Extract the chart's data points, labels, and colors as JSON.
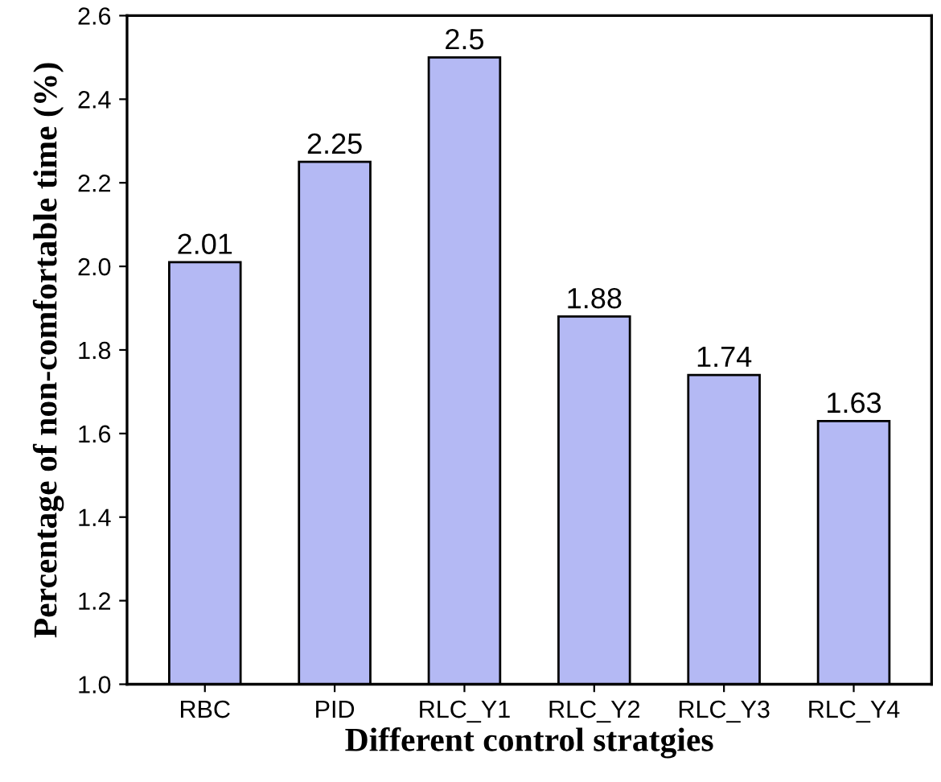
{
  "chart_data": {
    "type": "bar",
    "xlabel": "Different control stratgies",
    "ylabel": "Percentage of non-comfortable time (%)",
    "categories": [
      "RBC",
      "PID",
      "RLC_Y1",
      "RLC_Y2",
      "RLC_Y3",
      "RLC_Y4"
    ],
    "values": [
      2.01,
      2.25,
      2.5,
      1.88,
      1.74,
      1.63
    ],
    "color": "#b4b9f4",
    "ylim": [
      1.0,
      2.6
    ],
    "yticks": [
      {
        "value": 1.0,
        "label": "1.0"
      },
      {
        "value": 1.2,
        "label": "1.2"
      },
      {
        "value": 1.4,
        "label": "1.4"
      },
      {
        "value": 1.6,
        "label": "1.6"
      },
      {
        "value": 1.8,
        "label": "1.8"
      },
      {
        "value": 2.0,
        "label": "2.0"
      },
      {
        "value": 2.2,
        "label": "2.2"
      },
      {
        "value": 2.4,
        "label": "2.4"
      },
      {
        "value": 2.6,
        "label": "2.6"
      }
    ],
    "data_labels": true
  }
}
